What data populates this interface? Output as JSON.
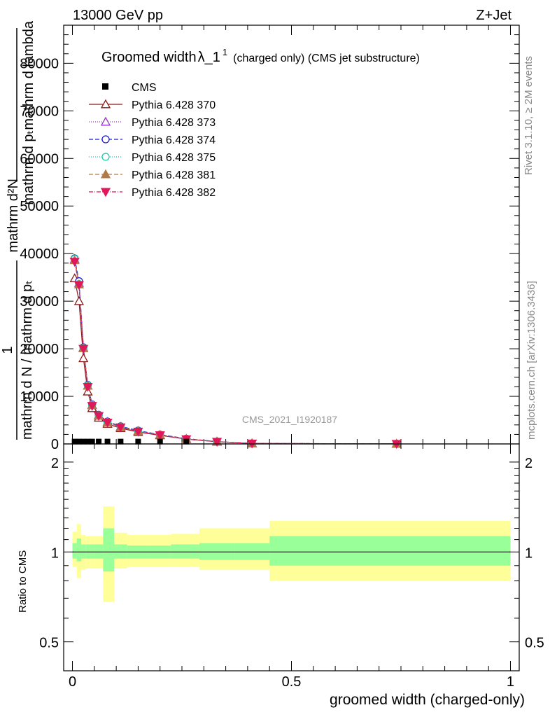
{
  "header": {
    "beam": "13000 GeV pp",
    "process": "Z+Jet"
  },
  "side": {
    "rivet": "Rivet 3.1.10, ≥ 2M events",
    "url": "mcplots.cern.ch [arXiv:1306.3436]"
  },
  "watermark": "CMS_2021_I1920187",
  "chart_data": [
    {
      "type": "line",
      "title_main": "Groomed width",
      "title_symbol": "λ_1",
      "title_sup": "1",
      "title_rest": "(charged only) (CMS jet substructure)",
      "ylabel_top_line1": "mathrm d²N",
      "ylabel_top_line2": "mathrm d pₜmathrm d lambda",
      "ylabel_bottom_one": "1",
      "ylabel_bottom_line": "mathrm d N / mathrm d pₜ",
      "ylim": [
        0,
        88000
      ],
      "y_ticks": [
        0,
        10000,
        20000,
        30000,
        40000,
        50000,
        60000,
        70000,
        80000
      ],
      "y_tick_labels": [
        "0",
        "10000",
        "20000",
        "30000",
        "40000",
        "50000",
        "60000",
        "70000",
        "80000"
      ],
      "xlim": [
        -0.02,
        1.02
      ],
      "cms": {
        "name": "CMS",
        "color": "#000000",
        "x": [
          0.005,
          0.015,
          0.025,
          0.035,
          0.045,
          0.06,
          0.08,
          0.11,
          0.15,
          0.2,
          0.26
        ],
        "y": [
          200,
          200,
          200,
          200,
          200,
          200,
          200,
          200,
          200,
          200,
          200
        ]
      },
      "series": [
        {
          "name": "Pythia 6.428 370",
          "color": "#8b1a1a",
          "marker": "triangle-open",
          "dash": "",
          "x": [
            0.005,
            0.015,
            0.025,
            0.035,
            0.045,
            0.06,
            0.08,
            0.11,
            0.15,
            0.2,
            0.26,
            0.33,
            0.41,
            0.74
          ],
          "y": [
            34800,
            30000,
            18000,
            11000,
            7500,
            5500,
            4200,
            3300,
            2500,
            1800,
            1000,
            450,
            100,
            20
          ]
        },
        {
          "name": "Pythia 6.428 373",
          "color": "#9932cc",
          "marker": "triangle-open",
          "dash": "1,2",
          "x": [
            0.005,
            0.015,
            0.025,
            0.035,
            0.045,
            0.06,
            0.08,
            0.11,
            0.15,
            0.2,
            0.26,
            0.33,
            0.41,
            0.74
          ],
          "y": [
            38800,
            33800,
            20200,
            12200,
            8200,
            6000,
            4600,
            3600,
            2700,
            1900,
            1050,
            480,
            110,
            20
          ]
        },
        {
          "name": "Pythia 6.428 374",
          "color": "#1c1cd6",
          "marker": "circle-open",
          "dash": "6,3",
          "x": [
            0.005,
            0.015,
            0.025,
            0.035,
            0.045,
            0.06,
            0.08,
            0.11,
            0.15,
            0.2,
            0.26,
            0.33,
            0.41,
            0.74
          ],
          "y": [
            39000,
            34200,
            20300,
            12400,
            8300,
            6100,
            4700,
            3700,
            2800,
            1950,
            1100,
            500,
            110,
            20
          ]
        },
        {
          "name": "Pythia 6.428 375",
          "color": "#17c9b0",
          "marker": "circle-open",
          "dash": "1,2",
          "x": [
            0.005,
            0.015,
            0.025,
            0.035,
            0.045,
            0.06,
            0.08,
            0.11,
            0.15,
            0.2,
            0.26,
            0.33,
            0.41,
            0.74
          ],
          "y": [
            38900,
            33600,
            20200,
            12300,
            8200,
            6000,
            4600,
            3600,
            2700,
            1900,
            1050,
            480,
            110,
            20
          ]
        },
        {
          "name": "Pythia 6.428 381",
          "color": "#b07a48",
          "marker": "triangle-filled",
          "dash": "6,3",
          "x": [
            0.005,
            0.015,
            0.025,
            0.035,
            0.045,
            0.06,
            0.08,
            0.11,
            0.15,
            0.2,
            0.26,
            0.33,
            0.41,
            0.74
          ],
          "y": [
            38600,
            33500,
            20100,
            12200,
            8100,
            5900,
            4500,
            3500,
            2700,
            1900,
            1050,
            480,
            110,
            20
          ]
        },
        {
          "name": "Pythia 6.428 382",
          "color": "#e0185a",
          "marker": "triangle-down-filled",
          "dash": "6,2,1,2",
          "x": [
            0.005,
            0.015,
            0.025,
            0.035,
            0.045,
            0.06,
            0.08,
            0.11,
            0.15,
            0.2,
            0.26,
            0.33,
            0.41,
            0.74
          ],
          "y": [
            38300,
            33400,
            20000,
            12000,
            8000,
            5900,
            4500,
            3500,
            2600,
            1850,
            1000,
            470,
            100,
            20
          ]
        }
      ]
    },
    {
      "type": "area",
      "ylabel": "Ratio to CMS",
      "xlabel": "groomed width (charged-only)",
      "xlim": [
        -0.02,
        1.02
      ],
      "ylim": [
        0.4,
        2.3
      ],
      "log_y": true,
      "x_ticks": [
        0,
        0.5,
        1
      ],
      "x_tick_labels": [
        "0",
        "0.5",
        "1"
      ],
      "y_ticks": [
        0.5,
        1,
        2
      ],
      "y_tick_labels": [
        "0.5",
        "1",
        "2"
      ],
      "reference_line": 1,
      "band_colors": {
        "outer": "#ffff99",
        "inner": "#99ff99"
      },
      "bins": [
        {
          "x0": 0.0,
          "x1": 0.01,
          "inner": [
            0.95,
            1.07
          ],
          "outer": [
            0.89,
            1.17
          ]
        },
        {
          "x0": 0.01,
          "x1": 0.02,
          "inner": [
            0.93,
            1.11
          ],
          "outer": [
            0.82,
            1.24
          ]
        },
        {
          "x0": 0.02,
          "x1": 0.03,
          "inner": [
            0.95,
            1.06
          ],
          "outer": [
            0.87,
            1.14
          ]
        },
        {
          "x0": 0.03,
          "x1": 0.04,
          "inner": [
            0.95,
            1.06
          ],
          "outer": [
            0.88,
            1.13
          ]
        },
        {
          "x0": 0.04,
          "x1": 0.05,
          "inner": [
            0.95,
            1.06
          ],
          "outer": [
            0.88,
            1.13
          ]
        },
        {
          "x0": 0.05,
          "x1": 0.07,
          "inner": [
            0.95,
            1.06
          ],
          "outer": [
            0.88,
            1.13
          ]
        },
        {
          "x0": 0.07,
          "x1": 0.095,
          "inner": [
            0.86,
            1.2
          ],
          "outer": [
            0.68,
            1.42
          ]
        },
        {
          "x0": 0.095,
          "x1": 0.125,
          "inner": [
            0.95,
            1.06
          ],
          "outer": [
            0.88,
            1.16
          ]
        },
        {
          "x0": 0.125,
          "x1": 0.175,
          "inner": [
            0.95,
            1.05
          ],
          "outer": [
            0.89,
            1.14
          ]
        },
        {
          "x0": 0.175,
          "x1": 0.225,
          "inner": [
            0.95,
            1.05
          ],
          "outer": [
            0.89,
            1.14
          ]
        },
        {
          "x0": 0.225,
          "x1": 0.29,
          "inner": [
            0.95,
            1.06
          ],
          "outer": [
            0.89,
            1.15
          ]
        },
        {
          "x0": 0.29,
          "x1": 0.37,
          "inner": [
            0.94,
            1.07
          ],
          "outer": [
            0.87,
            1.2
          ]
        },
        {
          "x0": 0.37,
          "x1": 0.45,
          "inner": [
            0.94,
            1.07
          ],
          "outer": [
            0.87,
            1.2
          ]
        },
        {
          "x0": 0.45,
          "x1": 1.0,
          "inner": [
            0.9,
            1.13
          ],
          "outer": [
            0.8,
            1.27
          ]
        }
      ]
    }
  ]
}
